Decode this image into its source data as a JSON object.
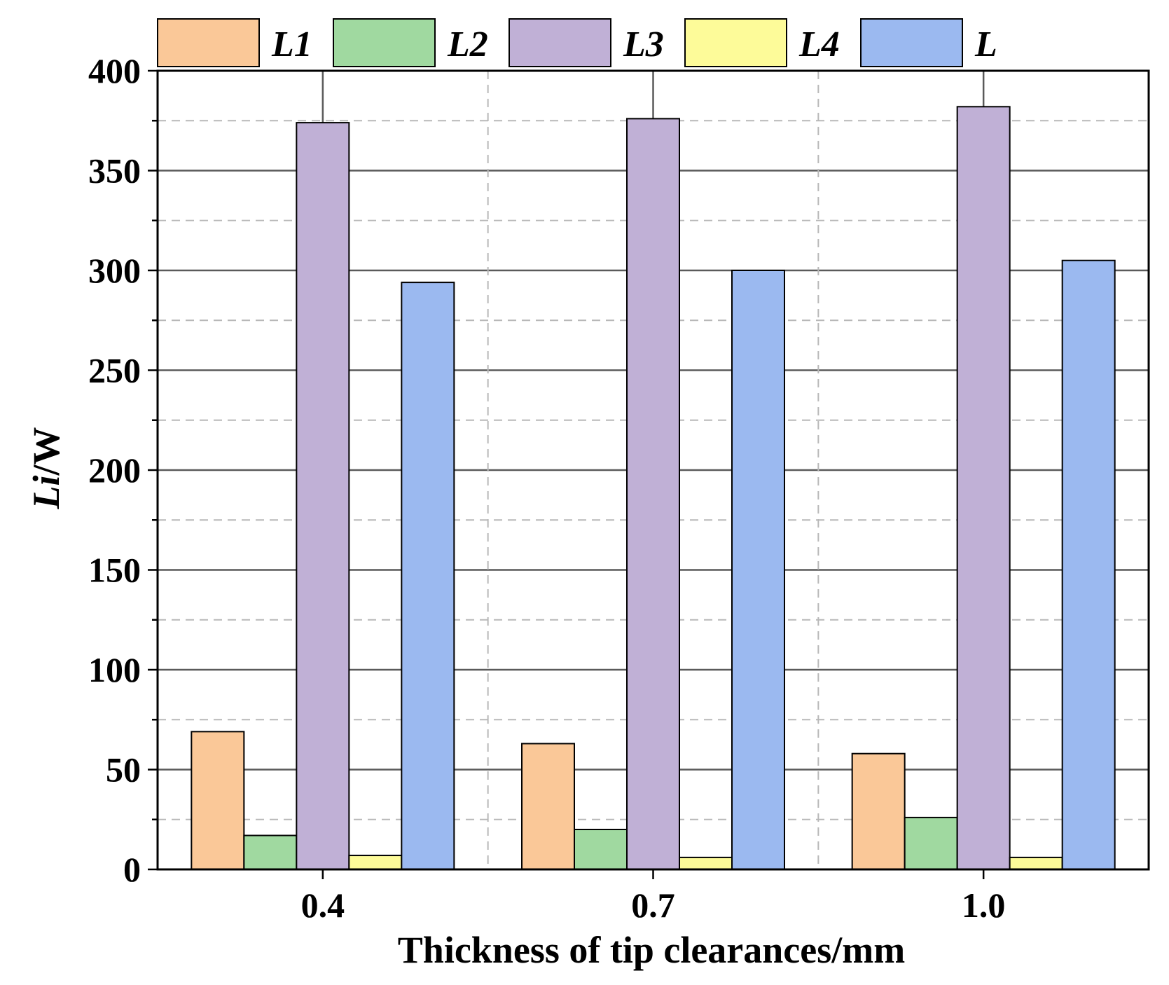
{
  "chart_data": {
    "type": "bar",
    "xlabel": "Thickness of tip clearances/mm",
    "ylabel_italic": "Li",
    "ylabel_rest": "/W",
    "categories": [
      "0.4",
      "0.7",
      "1.0"
    ],
    "ylim": [
      0,
      400
    ],
    "yticks": [
      0,
      50,
      100,
      150,
      200,
      250,
      300,
      350,
      400
    ],
    "grid": "on",
    "legend_position": "top",
    "series": [
      {
        "name": "L1",
        "color": "#fac898",
        "values": [
          69,
          63,
          58
        ]
      },
      {
        "name": "L2",
        "color": "#a0d9a0",
        "values": [
          17,
          20,
          26
        ]
      },
      {
        "name": "L3",
        "color": "#c0b0d6",
        "values": [
          374,
          376,
          382
        ]
      },
      {
        "name": "L4",
        "color": "#fdfb99",
        "values": [
          7,
          6,
          6
        ]
      },
      {
        "name": "L",
        "color": "#9bb9f0",
        "values": [
          294,
          300,
          305
        ]
      }
    ]
  }
}
